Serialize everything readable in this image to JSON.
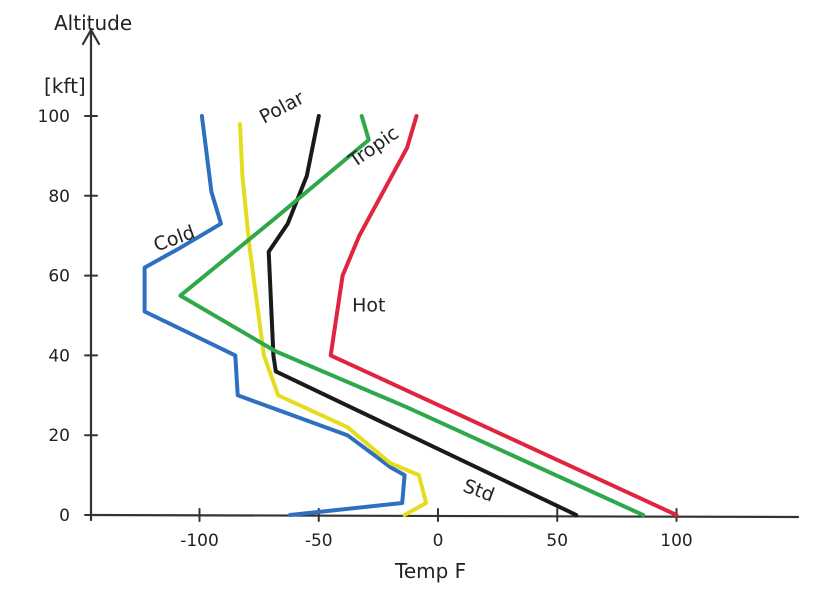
{
  "chart_data": {
    "type": "line",
    "ylabel": "Altitude",
    "yunit": "[kft]",
    "xlabel": "Temp  F",
    "xlim": [
      -150,
      150
    ],
    "ylim": [
      0,
      110
    ],
    "xticks": [
      -100,
      -50,
      0,
      50,
      100
    ],
    "xtick_labels": [
      "-100",
      "-50",
      "0",
      "50",
      "100"
    ],
    "yticks": [
      0,
      20,
      40,
      60,
      80,
      100
    ],
    "ytick_labels": [
      "0",
      "20",
      "40",
      "60",
      "80",
      "100"
    ],
    "grid": false,
    "legend": "none",
    "series": [
      {
        "name": "Cold",
        "color": "#2e6fc0",
        "points": [
          [
            -62,
            0
          ],
          [
            -15,
            3
          ],
          [
            -14,
            10
          ],
          [
            -20,
            12
          ],
          [
            -38,
            20
          ],
          [
            -84,
            30
          ],
          [
            -85,
            40
          ],
          [
            -123,
            51
          ],
          [
            -123,
            62
          ],
          [
            -108,
            67
          ],
          [
            -91,
            73
          ],
          [
            -95,
            81
          ],
          [
            -99,
            100
          ]
        ]
      },
      {
        "name": "Polar",
        "color": "#e6dc1e",
        "points": [
          [
            -14,
            0
          ],
          [
            -5,
            3
          ],
          [
            -8,
            10
          ],
          [
            -20,
            13
          ],
          [
            -38,
            22
          ],
          [
            -67,
            30
          ],
          [
            -73,
            40
          ],
          [
            -79,
            67
          ],
          [
            -82,
            85
          ],
          [
            -83,
            98
          ]
        ]
      },
      {
        "name": "Std",
        "color": "#1a1a1a",
        "points": [
          [
            58,
            0
          ],
          [
            -68,
            36
          ],
          [
            -69,
            40
          ],
          [
            -71,
            66
          ],
          [
            -63,
            73
          ],
          [
            -55,
            85
          ],
          [
            -50,
            100
          ]
        ]
      },
      {
        "name": "Tropic",
        "color": "#2fa84a",
        "points": [
          [
            86,
            0
          ],
          [
            -13,
            27
          ],
          [
            -68,
            41
          ],
          [
            -108,
            55
          ],
          [
            -69,
            74
          ],
          [
            -29,
            94
          ],
          [
            -32,
            100
          ]
        ]
      },
      {
        "name": "Hot",
        "color": "#e0263e",
        "points": [
          [
            100,
            0
          ],
          [
            -45,
            40
          ],
          [
            -40,
            60
          ],
          [
            -33,
            70
          ],
          [
            -13,
            92
          ],
          [
            -9,
            100
          ]
        ]
      }
    ],
    "annotations": [
      {
        "text": "Cold",
        "x": -118,
        "y": 66
      },
      {
        "text": "Polar",
        "x": -73,
        "y": 98
      },
      {
        "text": "Tropic",
        "x": -35,
        "y": 87
      },
      {
        "text": "Hot",
        "x": -36,
        "y": 51
      },
      {
        "text": "Std",
        "x": 10,
        "y": 6
      }
    ]
  }
}
